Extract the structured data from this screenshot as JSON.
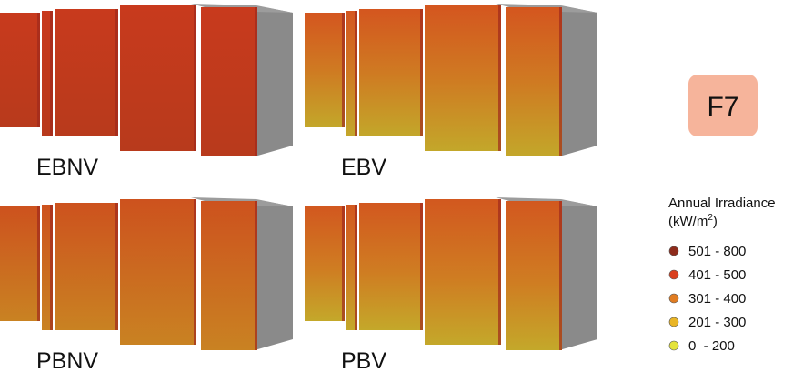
{
  "panels": [
    {
      "label": "EBNV"
    },
    {
      "label": "EBV"
    },
    {
      "label": "PBNV"
    },
    {
      "label": "PBV"
    }
  ],
  "badge": "F7",
  "legend": {
    "title": [
      "Annual Irradiance",
      "(kW/m",
      "2",
      ")"
    ],
    "items": [
      {
        "label": "501 - 800",
        "color": "#8e2b1b"
      },
      {
        "label": "401 - 500",
        "color": "#d9401f"
      },
      {
        "label": "301 - 400",
        "color": "#e07c22"
      },
      {
        "label": "201 - 300",
        "color": "#e9b526"
      },
      {
        "label": "0  - 200",
        "color": "#e4e33b"
      }
    ]
  }
}
